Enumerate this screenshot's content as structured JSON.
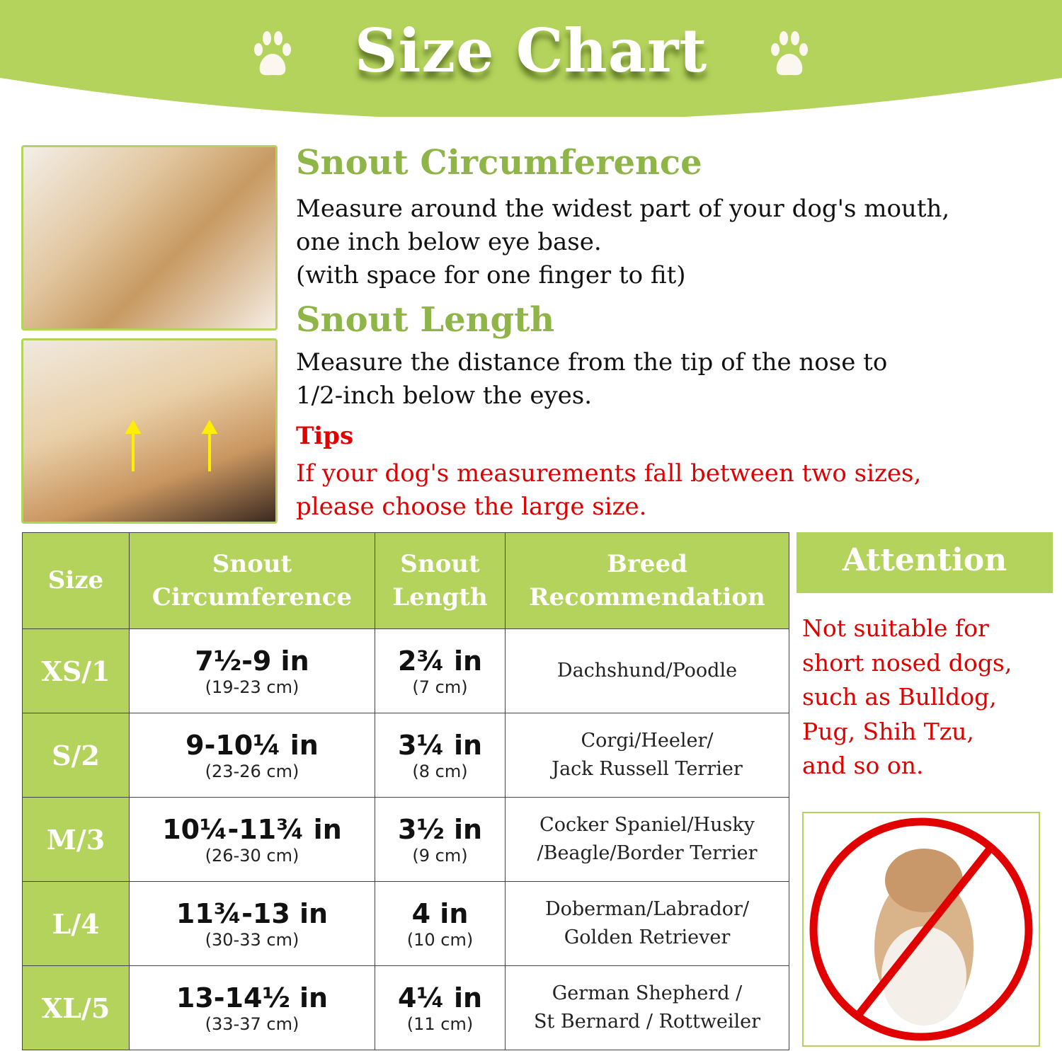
{
  "header": {
    "title": "Size Chart"
  },
  "colors": {
    "accent": "#b3d35c",
    "heading": "#8fb447",
    "warning": "#e00000"
  },
  "instructions": {
    "circ_title": "Snout Circumference",
    "circ_lines": [
      "Measure around the widest part of your dog's mouth,",
      "one inch below eye base.",
      "(with space for one finger to fit)"
    ],
    "len_title": "Snout Length",
    "len_lines": [
      "Measure the distance from the tip of the nose to",
      "1/2-inch below the eyes."
    ],
    "tips_title": "Tips",
    "tips_lines": [
      "If your dog's measurements fall between two sizes,",
      "please choose the large size."
    ]
  },
  "table": {
    "headers": {
      "size": "Size",
      "circ1": "Snout",
      "circ2": "Circumference",
      "len1": "Snout",
      "len2": "Length",
      "breed1": "Breed",
      "breed2": "Recommendation"
    },
    "rows": [
      {
        "size": "XS/1",
        "circ": "7½-9 in",
        "circ_cm": "(19-23 cm)",
        "len": "2¾ in",
        "len_cm": "(7 cm)",
        "breed1": "Dachshund/Poodle",
        "breed2": ""
      },
      {
        "size": "S/2",
        "circ": "9-10¼ in",
        "circ_cm": "(23-26 cm)",
        "len": "3¼ in",
        "len_cm": "(8 cm)",
        "breed1": "Corgi/Heeler/",
        "breed2": "Jack Russell Terrier"
      },
      {
        "size": "M/3",
        "circ": "10¼-11¾ in",
        "circ_cm": "(26-30 cm)",
        "len": "3½ in",
        "len_cm": "(9 cm)",
        "breed1": "Cocker Spaniel/Husky",
        "breed2": "/Beagle/Border Terrier"
      },
      {
        "size": "L/4",
        "circ": "11¾-13 in",
        "circ_cm": "(30-33 cm)",
        "len": "4 in",
        "len_cm": "(10 cm)",
        "breed1": "Doberman/Labrador/",
        "breed2": "Golden Retriever"
      },
      {
        "size": "XL/5",
        "circ": "13-14½ in",
        "circ_cm": "(33-37 cm)",
        "len": "4¼ in",
        "len_cm": "(11 cm)",
        "breed1": "German Shepherd /",
        "breed2": "St Bernard / Rottweiler"
      }
    ]
  },
  "attention": {
    "title": "Attention",
    "lines": [
      "Not suitable for",
      "short nosed dogs,",
      "such as Bulldog,",
      "Pug, Shih Tzu,",
      "and so on."
    ]
  }
}
